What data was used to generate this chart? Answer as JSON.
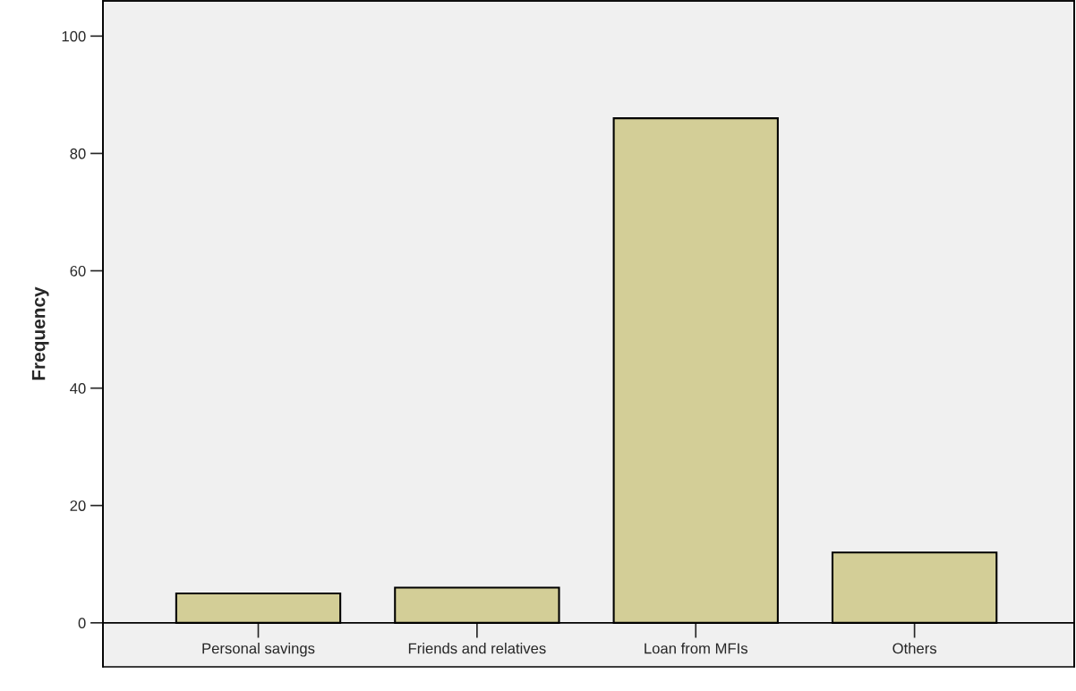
{
  "chart_data": {
    "type": "bar",
    "ylabel": "Frequency",
    "categories": [
      "Personal savings",
      "Friends and relatives",
      "Loan from MFIs",
      "Others"
    ],
    "values": [
      5,
      6,
      86,
      12
    ],
    "color": "#d3ce97",
    "ylim": [
      -7.5,
      106
    ],
    "yticks": [
      0,
      20,
      40,
      60,
      80,
      100
    ],
    "legend": false
  }
}
